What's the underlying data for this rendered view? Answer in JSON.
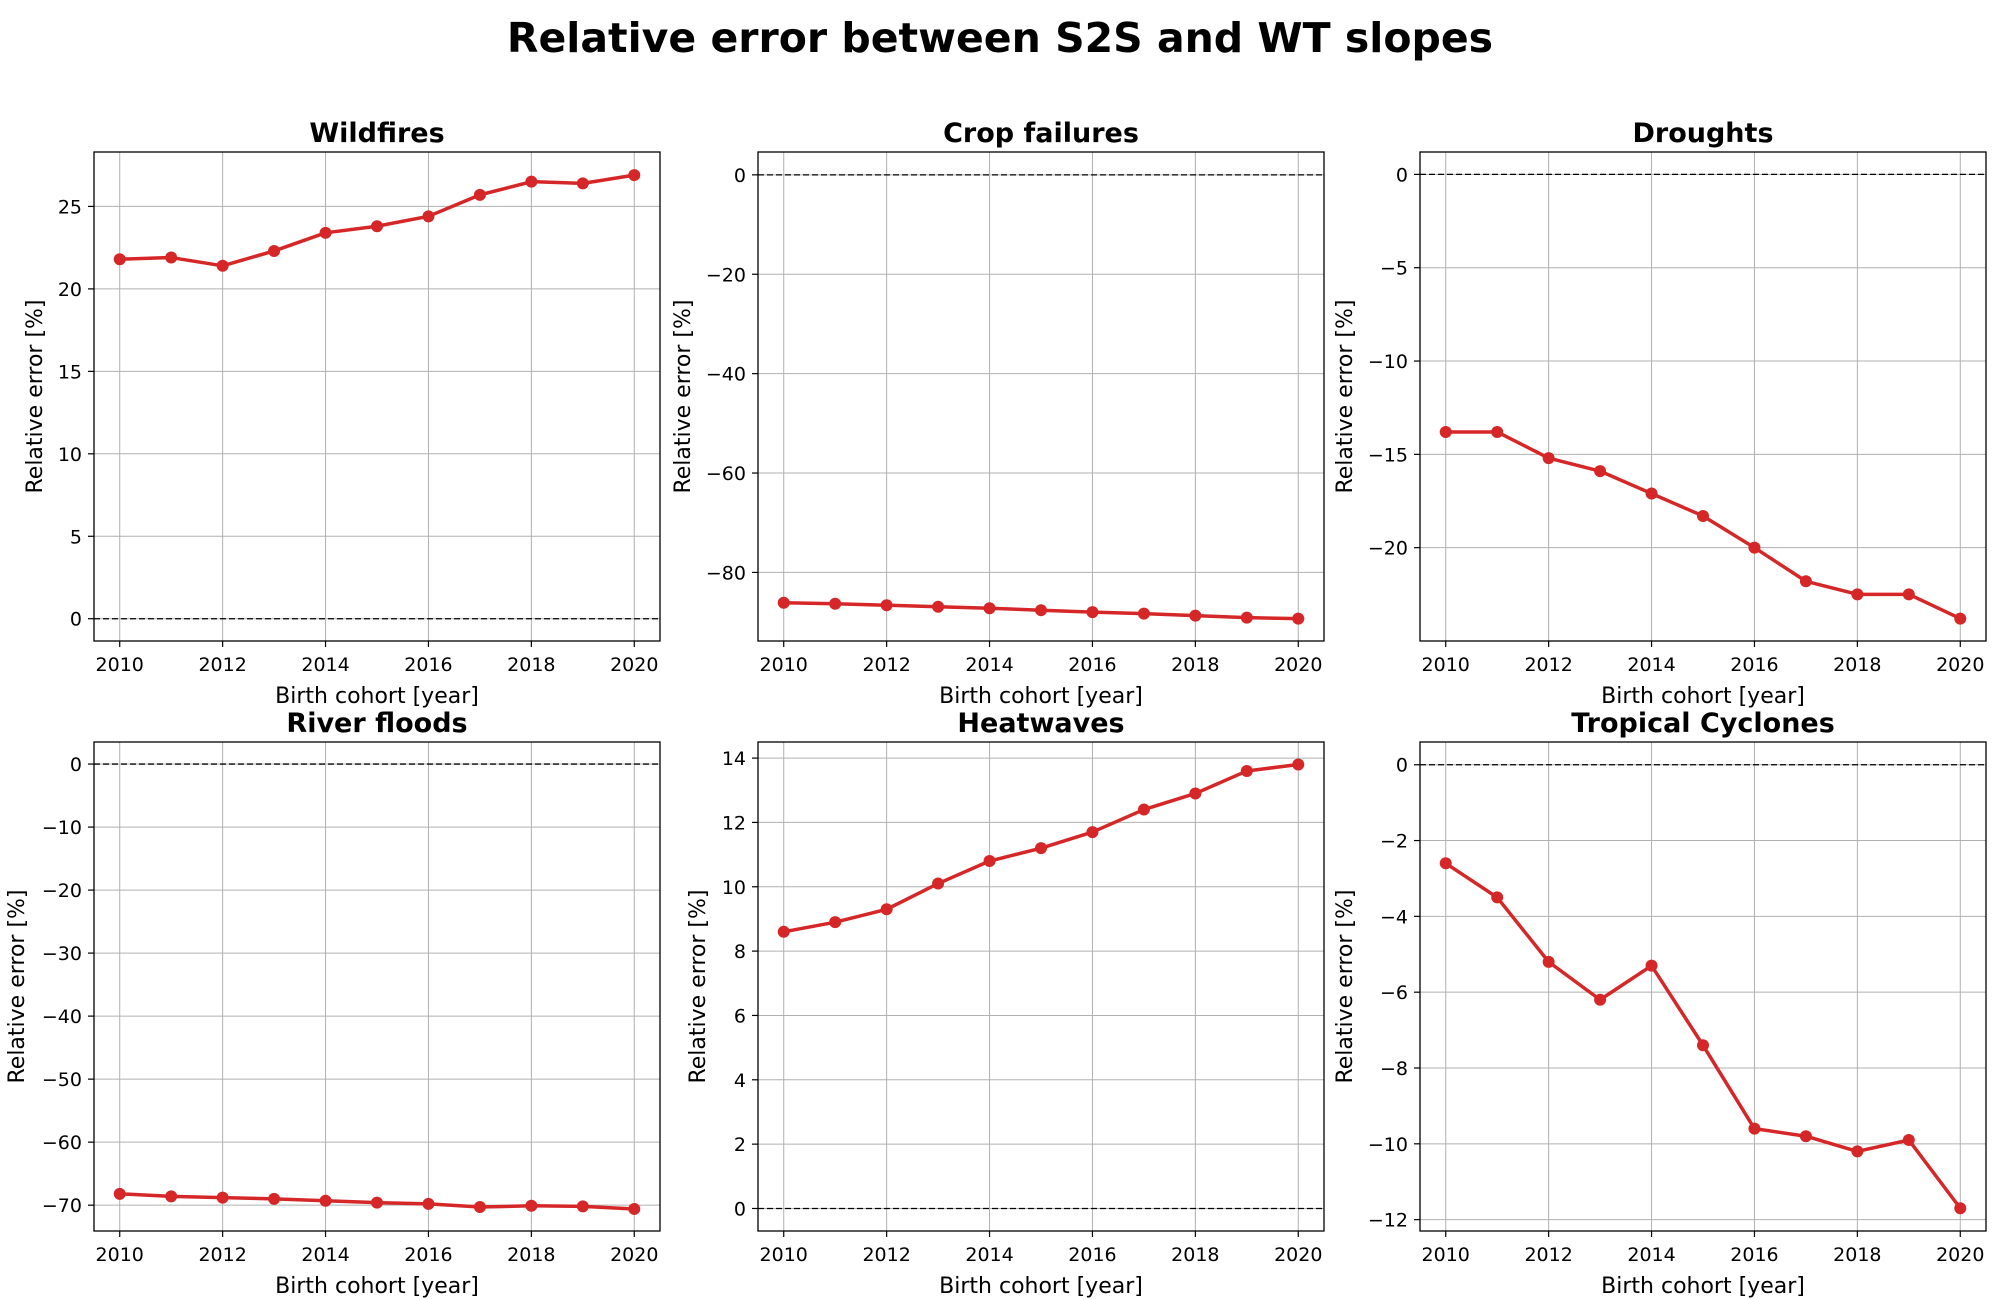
{
  "figure": {
    "title": "Relative error between S2S and WT slopes",
    "line_color": "#d62728"
  },
  "chart_data": [
    {
      "type": "line",
      "title": "Wildfires",
      "xlabel": "Birth cohort [year]",
      "ylabel": "Relative error [%]",
      "x": [
        2010,
        2011,
        2012,
        2013,
        2014,
        2015,
        2016,
        2017,
        2018,
        2019,
        2020
      ],
      "series": [
        {
          "values": [
            21.8,
            21.9,
            21.4,
            22.3,
            23.4,
            23.8,
            24.4,
            25.7,
            26.5,
            26.4,
            26.9
          ]
        }
      ],
      "xlim": [
        2009.5,
        2020.5
      ],
      "ylim": [
        -1.35,
        28.3
      ],
      "xticks": [
        2010,
        2012,
        2014,
        2016,
        2018,
        2020
      ],
      "yticks": [
        0,
        5,
        10,
        15,
        20,
        25
      ],
      "zero_line": true,
      "grid": true
    },
    {
      "type": "line",
      "title": "Crop failures",
      "xlabel": "Birth cohort [year]",
      "ylabel": "Relative error [%]",
      "x": [
        2010,
        2011,
        2012,
        2013,
        2014,
        2015,
        2016,
        2017,
        2018,
        2019,
        2020
      ],
      "series": [
        {
          "values": [
            -86.1,
            -86.3,
            -86.6,
            -86.9,
            -87.2,
            -87.6,
            -88.0,
            -88.3,
            -88.7,
            -89.1,
            -89.3
          ]
        }
      ],
      "xlim": [
        2009.5,
        2020.5
      ],
      "ylim": [
        -93.8,
        4.6
      ],
      "xticks": [
        2010,
        2012,
        2014,
        2016,
        2018,
        2020
      ],
      "yticks": [
        0,
        -20,
        -40,
        -60,
        -80
      ],
      "zero_line": true,
      "grid": true
    },
    {
      "type": "line",
      "title": "Droughts",
      "xlabel": "Birth cohort [year]",
      "ylabel": "Relative error [%]",
      "x": [
        2010,
        2011,
        2012,
        2013,
        2014,
        2015,
        2016,
        2017,
        2018,
        2019,
        2020
      ],
      "series": [
        {
          "values": [
            -13.8,
            -13.8,
            -15.2,
            -15.9,
            -17.1,
            -18.3,
            -20.0,
            -21.8,
            -22.5,
            -22.5,
            -23.8
          ]
        }
      ],
      "xlim": [
        2009.5,
        2020.5
      ],
      "ylim": [
        -25.0,
        1.2
      ],
      "xticks": [
        2010,
        2012,
        2014,
        2016,
        2018,
        2020
      ],
      "yticks": [
        0,
        -5,
        -10,
        -15,
        -20
      ],
      "zero_line": true,
      "grid": true
    },
    {
      "type": "line",
      "title": "River floods",
      "xlabel": "Birth cohort [year]",
      "ylabel": "Relative error [%]",
      "x": [
        2010,
        2011,
        2012,
        2013,
        2014,
        2015,
        2016,
        2017,
        2018,
        2019,
        2020
      ],
      "series": [
        {
          "values": [
            -68.2,
            -68.6,
            -68.8,
            -69.0,
            -69.3,
            -69.6,
            -69.8,
            -70.3,
            -70.1,
            -70.2,
            -70.6
          ]
        }
      ],
      "xlim": [
        2009.5,
        2020.5
      ],
      "ylim": [
        -74.1,
        3.5
      ],
      "xticks": [
        2010,
        2012,
        2014,
        2016,
        2018,
        2020
      ],
      "yticks": [
        0,
        -10,
        -20,
        -30,
        -40,
        -50,
        -60,
        -70
      ],
      "zero_line": true,
      "grid": true
    },
    {
      "type": "line",
      "title": "Heatwaves",
      "xlabel": "Birth cohort [year]",
      "ylabel": "Relative error [%]",
      "x": [
        2010,
        2011,
        2012,
        2013,
        2014,
        2015,
        2016,
        2017,
        2018,
        2019,
        2020
      ],
      "series": [
        {
          "values": [
            8.6,
            8.9,
            9.3,
            10.1,
            10.8,
            11.2,
            11.7,
            12.4,
            12.9,
            13.6,
            13.8
          ]
        }
      ],
      "xlim": [
        2009.5,
        2020.5
      ],
      "ylim": [
        -0.7,
        14.5
      ],
      "xticks": [
        2010,
        2012,
        2014,
        2016,
        2018,
        2020
      ],
      "yticks": [
        0,
        2,
        4,
        6,
        8,
        10,
        12,
        14
      ],
      "zero_line": true,
      "grid": true
    },
    {
      "type": "line",
      "title": "Tropical Cyclones",
      "xlabel": "Birth cohort [year]",
      "ylabel": "Relative error [%]",
      "x": [
        2010,
        2011,
        2012,
        2013,
        2014,
        2015,
        2016,
        2017,
        2018,
        2019,
        2020
      ],
      "series": [
        {
          "values": [
            -2.6,
            -3.5,
            -5.2,
            -6.2,
            -5.3,
            -7.4,
            -9.6,
            -9.8,
            -10.2,
            -9.9,
            -11.7
          ]
        }
      ],
      "xlim": [
        2009.5,
        2020.5
      ],
      "ylim": [
        -12.3,
        0.6
      ],
      "xticks": [
        2010,
        2012,
        2014,
        2016,
        2018,
        2020
      ],
      "yticks": [
        0,
        -2,
        -4,
        -6,
        -8,
        -10,
        -12
      ],
      "zero_line": true,
      "grid": true
    }
  ]
}
